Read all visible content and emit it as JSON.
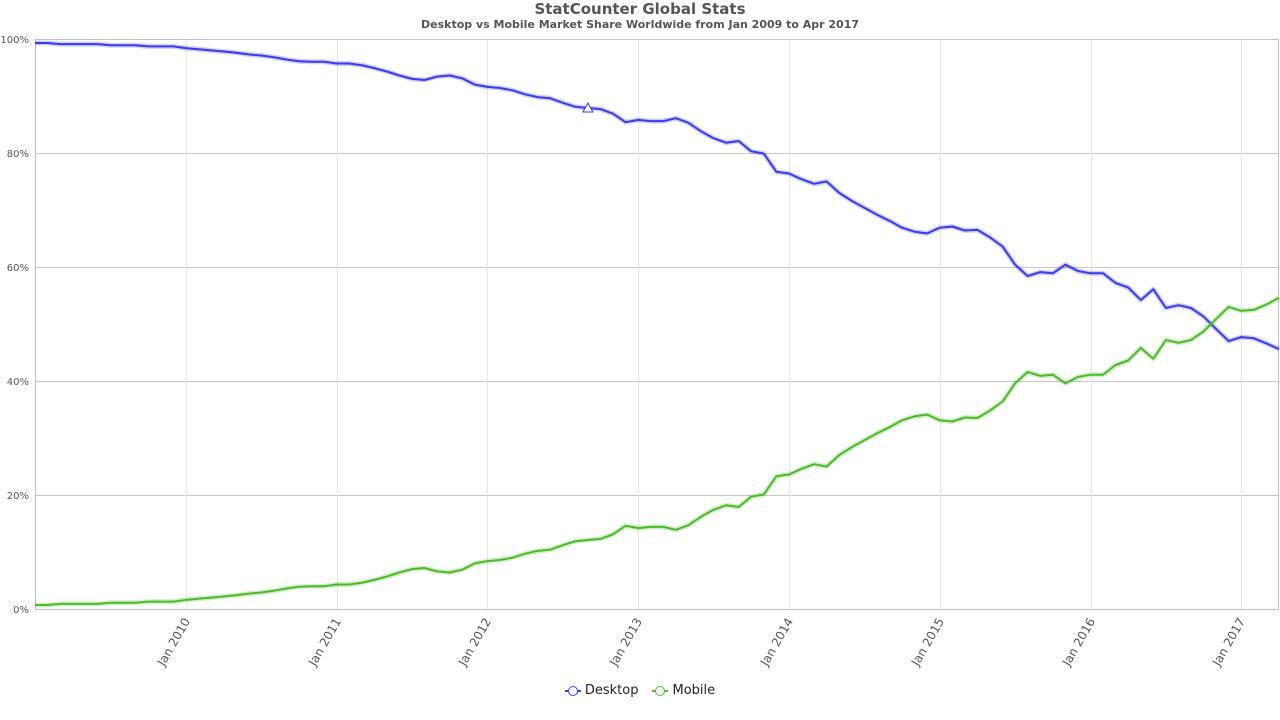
{
  "chart_data": {
    "type": "line",
    "title": "StatCounter Global Stats",
    "subtitle": "Desktop vs Mobile Market Share Worldwide from Jan 2009 to Apr 2017",
    "ylim": [
      0,
      100
    ],
    "yticks": [
      "0%",
      "20%",
      "40%",
      "60%",
      "80%",
      "100%"
    ],
    "xticks": [
      "Jan 2010",
      "Jan 2011",
      "Jan 2012",
      "Jan 2013",
      "Jan 2014",
      "Jan 2015",
      "Jan 2016",
      "Jan 2017"
    ],
    "x_start": "Jan 2009",
    "x_end": "Apr 2017",
    "grid": true,
    "legend_position": "bottom-center",
    "series": [
      {
        "name": "Desktop",
        "color": "#3b3be8",
        "values": [
          99.3,
          99.3,
          99.1,
          99.1,
          99.1,
          99.1,
          98.9,
          98.9,
          98.9,
          98.7,
          98.7,
          98.7,
          98.4,
          98.2,
          98.0,
          97.8,
          97.6,
          97.3,
          97.1,
          96.8,
          96.4,
          96.1,
          96.0,
          96.0,
          95.7,
          95.7,
          95.4,
          94.9,
          94.3,
          93.6,
          93.0,
          92.8,
          93.4,
          93.6,
          93.1,
          92.0,
          91.6,
          91.4,
          91.0,
          90.3,
          89.8,
          89.6,
          88.8,
          88.1,
          87.9,
          87.7,
          86.9,
          85.4,
          85.8,
          85.6,
          85.6,
          86.1,
          85.3,
          83.8,
          82.6,
          81.8,
          82.1,
          80.3,
          79.9,
          76.7,
          76.4,
          75.4,
          74.6,
          75.0,
          73.0,
          71.6,
          70.4,
          69.2,
          68.1,
          66.9,
          66.2,
          65.9,
          66.9,
          67.1,
          66.4,
          66.5,
          65.2,
          63.6,
          60.4,
          58.4,
          59.1,
          58.9,
          60.4,
          59.3,
          58.9,
          58.9,
          57.2,
          56.4,
          54.2,
          56.1,
          52.8,
          53.3,
          52.8,
          51.3,
          49.1,
          47.0,
          47.7,
          47.5,
          46.6,
          45.6
        ]
      },
      {
        "name": "Mobile",
        "color": "#4cba2a",
        "values": [
          0.7,
          0.7,
          0.9,
          0.9,
          0.9,
          0.9,
          1.1,
          1.1,
          1.1,
          1.3,
          1.3,
          1.3,
          1.6,
          1.8,
          2.0,
          2.2,
          2.4,
          2.7,
          2.9,
          3.2,
          3.6,
          3.9,
          4.0,
          4.0,
          4.3,
          4.3,
          4.6,
          5.1,
          5.7,
          6.4,
          7.0,
          7.2,
          6.6,
          6.4,
          6.9,
          8.0,
          8.4,
          8.6,
          9.0,
          9.7,
          10.2,
          10.4,
          11.2,
          11.9,
          12.1,
          12.3,
          13.1,
          14.6,
          14.2,
          14.4,
          14.4,
          13.9,
          14.7,
          16.2,
          17.4,
          18.2,
          17.9,
          19.7,
          20.1,
          23.3,
          23.6,
          24.6,
          25.4,
          25.0,
          27.0,
          28.4,
          29.6,
          30.8,
          31.9,
          33.1,
          33.8,
          34.1,
          33.1,
          32.9,
          33.6,
          33.5,
          34.8,
          36.4,
          39.6,
          41.6,
          40.9,
          41.1,
          39.6,
          40.7,
          41.1,
          41.1,
          42.8,
          43.6,
          45.8,
          43.9,
          47.2,
          46.7,
          47.2,
          48.7,
          50.9,
          53.0,
          52.3,
          52.5,
          53.4,
          54.6
        ]
      }
    ],
    "marker": {
      "series": "Desktop",
      "month_index": 44,
      "shape": "triangle"
    }
  }
}
